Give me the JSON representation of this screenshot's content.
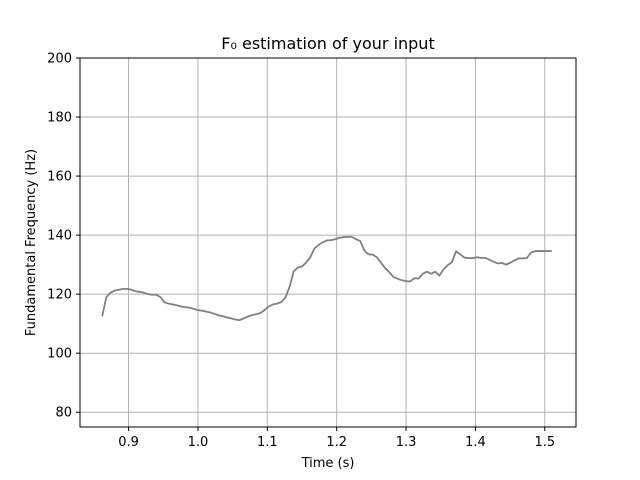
{
  "chart_data": {
    "type": "line",
    "title": "F₀ estimation of your input",
    "xlabel": "Time (s)",
    "ylabel": "Fundamental Frequency (Hz)",
    "xlim": [
      0.83,
      1.545
    ],
    "ylim": [
      75,
      200
    ],
    "xticks": [
      0.9,
      1.0,
      1.1,
      1.2,
      1.3,
      1.4,
      1.5
    ],
    "xtick_labels": [
      "0.9",
      "1.0",
      "1.1",
      "1.2",
      "1.3",
      "1.4",
      "1.5"
    ],
    "yticks": [
      80,
      100,
      120,
      140,
      160,
      180,
      200
    ],
    "ytick_labels": [
      "80",
      "100",
      "120",
      "140",
      "160",
      "180",
      "200"
    ],
    "grid": true,
    "line_color": "#808080",
    "series": [
      {
        "x": [
          0.862,
          0.868,
          0.874,
          0.88,
          0.886,
          0.892,
          0.898,
          0.904,
          0.91,
          0.916,
          0.922,
          0.928,
          0.934,
          0.94,
          0.946,
          0.952,
          0.958,
          0.964,
          0.97,
          0.976,
          0.982,
          0.988,
          0.994,
          1.0,
          1.006,
          1.012,
          1.018,
          1.024,
          1.03,
          1.036,
          1.042,
          1.048,
          1.054,
          1.06,
          1.066,
          1.072,
          1.078,
          1.084,
          1.09,
          1.096,
          1.102,
          1.108,
          1.114,
          1.12,
          1.126,
          1.132,
          1.138,
          1.144,
          1.15,
          1.156,
          1.162,
          1.168,
          1.174,
          1.18,
          1.186,
          1.192,
          1.198,
          1.204,
          1.21,
          1.216,
          1.222,
          1.228,
          1.234,
          1.24,
          1.246,
          1.252,
          1.258,
          1.264,
          1.27,
          1.276,
          1.282,
          1.288,
          1.294,
          1.3,
          1.306,
          1.312,
          1.318,
          1.324,
          1.33,
          1.336,
          1.342,
          1.348,
          1.354,
          1.36,
          1.366,
          1.372,
          1.378,
          1.384,
          1.39,
          1.396,
          1.402,
          1.408,
          1.414,
          1.42,
          1.426,
          1.432,
          1.438,
          1.444,
          1.45,
          1.456,
          1.462,
          1.468,
          1.474,
          1.48,
          1.486,
          1.492,
          1.498,
          1.504,
          1.51
        ],
        "y": [
          112.5,
          119.0,
          120.5,
          121.2,
          121.5,
          121.8,
          121.8,
          121.5,
          121.0,
          120.8,
          120.5,
          120.0,
          119.8,
          119.8,
          119.0,
          117.2,
          116.8,
          116.5,
          116.2,
          115.8,
          115.6,
          115.4,
          115.0,
          114.6,
          114.4,
          114.1,
          113.8,
          113.3,
          112.8,
          112.5,
          112.1,
          111.8,
          111.4,
          111.2,
          111.8,
          112.4,
          112.9,
          113.2,
          113.6,
          114.6,
          115.8,
          116.5,
          116.8,
          117.3,
          118.8,
          122.4,
          127.7,
          129.0,
          129.4,
          130.7,
          132.5,
          135.5,
          136.7,
          137.6,
          138.2,
          138.3,
          138.6,
          139.1,
          139.3,
          139.4,
          139.4,
          138.6,
          138.0,
          134.7,
          133.5,
          133.4,
          132.5,
          130.6,
          128.8,
          127.4,
          125.8,
          125.2,
          124.7,
          124.4,
          124.3,
          125.4,
          125.3,
          126.9,
          127.6,
          126.9,
          127.6,
          126.3,
          128.4,
          129.8,
          130.8,
          134.5,
          133.5,
          132.4,
          132.2,
          132.2,
          132.5,
          132.3,
          132.3,
          131.7,
          131.0,
          130.4,
          130.6,
          130.0,
          130.6,
          131.4,
          132.1,
          132.1,
          132.2,
          134.0,
          134.6,
          134.6,
          134.6,
          134.6,
          134.6
        ]
      }
    ]
  }
}
